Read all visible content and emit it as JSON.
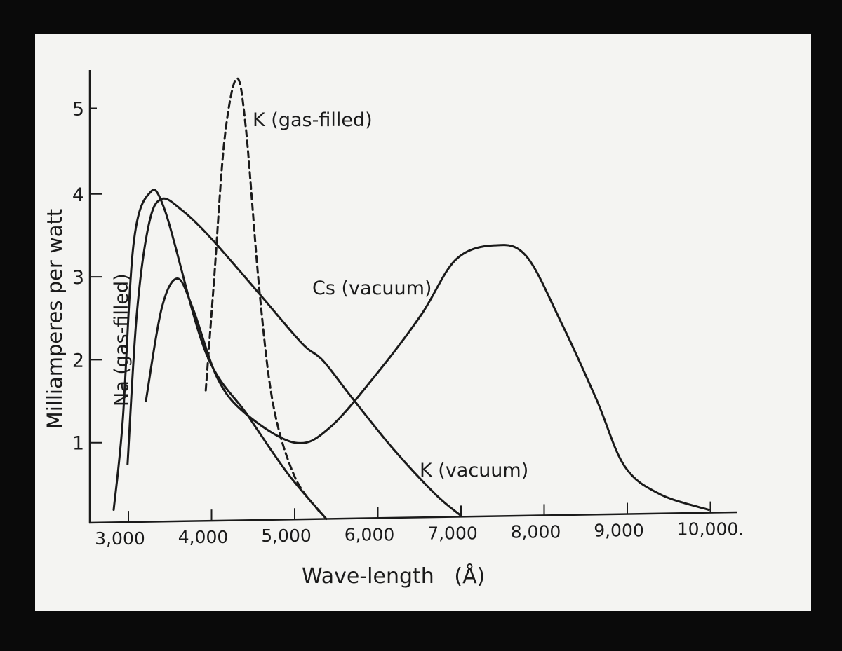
{
  "chart_data": {
    "type": "line",
    "title": "",
    "xlabel": "Wave-length   (Å)",
    "ylabel": "Milliamperes per watt",
    "xlim": [
      2600,
      10300
    ],
    "ylim": [
      0,
      5.5
    ],
    "x_ticks": [
      3000,
      4000,
      5000,
      6000,
      7000,
      8000,
      9000,
      10000
    ],
    "x_tick_labels": [
      "3,000",
      "4,000",
      "5,000",
      "6,000",
      "7,000",
      "8,000",
      "9,000",
      "10,000."
    ],
    "y_ticks": [
      1,
      2,
      3,
      4,
      5
    ],
    "y_tick_labels": [
      "1",
      "2",
      "3",
      "4",
      "5"
    ],
    "grid": false,
    "colors": {
      "ink": "#1a1a1a",
      "paper": "#f4f4f2",
      "frame": "#0a0a0a"
    },
    "series": [
      {
        "name": "Na (gas-filled)",
        "style": "solid",
        "points": [
          [
            2823,
            0.19
          ],
          [
            2932,
            1.27
          ],
          [
            3060,
            3.38
          ],
          [
            3245,
            4.0
          ],
          [
            3440,
            3.8
          ],
          [
            3930,
            2.09
          ],
          [
            4435,
            1.33
          ],
          [
            4915,
            0.63
          ],
          [
            5380,
            0.08
          ]
        ]
      },
      {
        "name": "K (vacuum)",
        "style": "solid",
        "points": [
          [
            2990,
            0.74
          ],
          [
            3100,
            2.54
          ],
          [
            3245,
            3.63
          ],
          [
            3400,
            3.94
          ],
          [
            3650,
            3.8
          ],
          [
            3990,
            3.47
          ],
          [
            4580,
            2.79
          ],
          [
            5085,
            2.2
          ],
          [
            5340,
            1.99
          ],
          [
            5675,
            1.56
          ],
          [
            6180,
            0.93
          ],
          [
            6690,
            0.38
          ],
          [
            6985,
            0.13
          ]
        ]
      },
      {
        "name": "Cs (vacuum)",
        "style": "solid",
        "points": [
          [
            3210,
            1.5
          ],
          [
            3400,
            2.62
          ],
          [
            3590,
            2.98
          ],
          [
            3775,
            2.62
          ],
          [
            4070,
            1.78
          ],
          [
            4410,
            1.35
          ],
          [
            5000,
            1.0
          ],
          [
            5420,
            1.18
          ],
          [
            6010,
            1.86
          ],
          [
            6520,
            2.54
          ],
          [
            6940,
            3.21
          ],
          [
            7405,
            3.38
          ],
          [
            7785,
            3.25
          ],
          [
            8205,
            2.45
          ],
          [
            8630,
            1.52
          ],
          [
            8965,
            0.72
          ],
          [
            9390,
            0.38
          ],
          [
            9980,
            0.19
          ]
        ]
      },
      {
        "name": "K (gas-filled)",
        "style": "dashed",
        "points": [
          [
            3930,
            1.63
          ],
          [
            4030,
            2.96
          ],
          [
            4155,
            4.65
          ],
          [
            4300,
            5.39
          ],
          [
            4410,
            4.82
          ],
          [
            4580,
            2.79
          ],
          [
            4745,
            1.44
          ],
          [
            5000,
            0.59
          ],
          [
            5295,
            0.17
          ]
        ]
      }
    ],
    "annotations": [
      "K (gas-filled)",
      "Cs (vacuum)",
      "K (vacuum)",
      "Na (gas-filled)"
    ]
  }
}
